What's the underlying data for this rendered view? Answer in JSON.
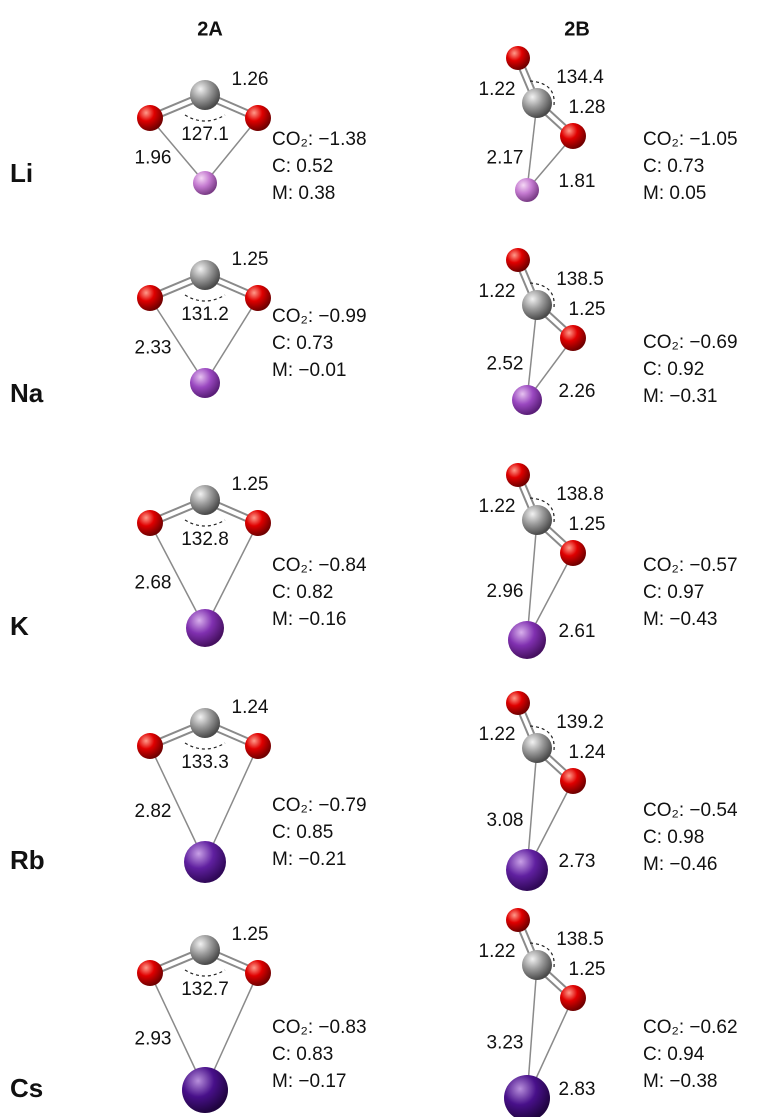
{
  "header": {
    "col_a": "2A",
    "col_b": "2B"
  },
  "rows": [
    {
      "metal": "Li",
      "a": {
        "c_o": "1.26",
        "angle": "127.1",
        "m_o": "1.96",
        "charges": [
          "CO₂: −1.38",
          "C: 0.52",
          "M: 0.38"
        ]
      },
      "b": {
        "c_o_top": "1.22",
        "angle": "134.4",
        "c_o": "1.28",
        "m_c": "2.17",
        "m_o": "1.81",
        "charges": [
          "CO₂: −1.05",
          "C: 0.73",
          "M: 0.05"
        ]
      }
    },
    {
      "metal": "Na",
      "a": {
        "c_o": "1.25",
        "angle": "131.2",
        "m_o": "2.33",
        "charges": [
          "CO₂: −0.99",
          "C: 0.73",
          "M: −0.01"
        ]
      },
      "b": {
        "c_o_top": "1.22",
        "angle": "138.5",
        "c_o": "1.25",
        "m_c": "2.52",
        "m_o": "2.26",
        "charges": [
          "CO₂: −0.69",
          "C: 0.92",
          "M: −0.31"
        ]
      }
    },
    {
      "metal": "K",
      "a": {
        "c_o": "1.25",
        "angle": "132.8",
        "m_o": "2.68",
        "charges": [
          "CO₂: −0.84",
          "C: 0.82",
          "M: −0.16"
        ]
      },
      "b": {
        "c_o_top": "1.22",
        "angle": "138.8",
        "c_o": "1.25",
        "m_c": "2.96",
        "m_o": "2.61",
        "charges": [
          "CO₂: −0.57",
          "C: 0.97",
          "M: −0.43"
        ]
      }
    },
    {
      "metal": "Rb",
      "a": {
        "c_o": "1.24",
        "angle": "133.3",
        "m_o": "2.82",
        "charges": [
          "CO₂: −0.79",
          "C: 0.85",
          "M: −0.21"
        ]
      },
      "b": {
        "c_o_top": "1.22",
        "angle": "139.2",
        "c_o": "1.24",
        "m_c": "3.08",
        "m_o": "2.73",
        "charges": [
          "CO₂: −0.54",
          "C: 0.98",
          "M: −0.46"
        ]
      }
    },
    {
      "metal": "Cs",
      "a": {
        "c_o": "1.25",
        "angle": "132.7",
        "m_o": "2.93",
        "charges": [
          "CO₂: −0.83",
          "C: 0.83",
          "M: −0.17"
        ]
      },
      "b": {
        "c_o_top": "1.22",
        "angle": "138.5",
        "c_o": "1.25",
        "m_c": "3.23",
        "m_o": "2.83",
        "charges": [
          "CO₂: −0.62",
          "C: 0.94",
          "M: −0.38"
        ]
      }
    }
  ]
}
